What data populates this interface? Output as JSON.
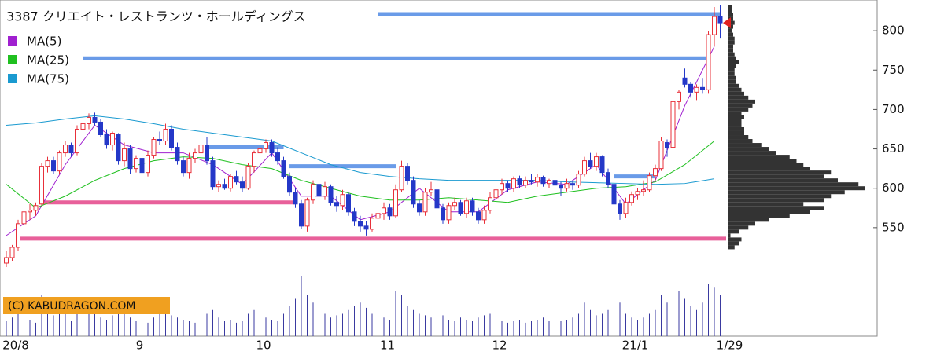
{
  "chart_data": {
    "type": "candlestick",
    "title": "3387 クリエイト・レストランツ・ホールディングス",
    "copyright": "(C) KABUDRAGON.COM",
    "ylim": [
      500,
      839
    ],
    "yticks": [
      550,
      600,
      650,
      700,
      750,
      800
    ],
    "xlim": [
      -1,
      122
    ],
    "xticks": [
      {
        "value": 0,
        "label": "20/8"
      },
      {
        "value": 21,
        "label": "9"
      },
      {
        "value": 42,
        "label": "10"
      },
      {
        "value": 63,
        "label": "11"
      },
      {
        "value": 82,
        "label": "12"
      },
      {
        "value": 105,
        "label": "21/1"
      },
      {
        "value": 121,
        "label": "1/29"
      }
    ],
    "up_color": "#e8303a",
    "down_color": "#2438c8",
    "candles": [
      [
        505,
        520,
        500,
        512
      ],
      [
        512,
        528,
        508,
        525
      ],
      [
        525,
        560,
        520,
        555
      ],
      [
        555,
        575,
        548,
        570
      ],
      [
        570,
        580,
        560,
        572
      ],
      [
        572,
        582,
        565,
        578
      ],
      [
        580,
        632,
        578,
        628
      ],
      [
        628,
        640,
        620,
        635
      ],
      [
        635,
        640,
        618,
        622
      ],
      [
        622,
        648,
        618,
        645
      ],
      [
        645,
        660,
        640,
        655
      ],
      [
        655,
        658,
        640,
        645
      ],
      [
        645,
        680,
        642,
        675
      ],
      [
        675,
        690,
        668,
        682
      ],
      [
        682,
        695,
        675,
        690
      ],
      [
        690,
        696,
        680,
        684
      ],
      [
        684,
        688,
        665,
        668
      ],
      [
        668,
        675,
        650,
        655
      ],
      [
        655,
        672,
        648,
        670
      ],
      [
        668,
        670,
        630,
        635
      ],
      [
        635,
        658,
        628,
        650
      ],
      [
        650,
        655,
        618,
        625
      ],
      [
        625,
        642,
        620,
        638
      ],
      [
        638,
        640,
        615,
        620
      ],
      [
        620,
        648,
        615,
        642
      ],
      [
        642,
        665,
        638,
        662
      ],
      [
        662,
        672,
        655,
        660
      ],
      [
        660,
        682,
        655,
        675
      ],
      [
        675,
        680,
        648,
        652
      ],
      [
        652,
        658,
        630,
        635
      ],
      [
        635,
        640,
        615,
        620
      ],
      [
        620,
        645,
        612,
        638
      ],
      [
        638,
        650,
        632,
        645
      ],
      [
        645,
        660,
        640,
        655
      ],
      [
        655,
        665,
        630,
        635
      ],
      [
        635,
        640,
        598,
        602
      ],
      [
        602,
        610,
        595,
        605
      ],
      [
        605,
        612,
        598,
        600
      ],
      [
        600,
        618,
        596,
        615
      ],
      [
        615,
        622,
        605,
        608
      ],
      [
        608,
        615,
        595,
        600
      ],
      [
        600,
        632,
        598,
        628
      ],
      [
        628,
        648,
        620,
        645
      ],
      [
        645,
        655,
        638,
        650
      ],
      [
        650,
        662,
        645,
        658
      ],
      [
        658,
        662,
        640,
        645
      ],
      [
        645,
        652,
        630,
        635
      ],
      [
        635,
        640,
        612,
        615
      ],
      [
        615,
        620,
        590,
        595
      ],
      [
        595,
        600,
        575,
        580
      ],
      [
        580,
        585,
        548,
        552
      ],
      [
        552,
        588,
        545,
        585
      ],
      [
        585,
        610,
        580,
        605
      ],
      [
        605,
        612,
        585,
        590
      ],
      [
        590,
        608,
        585,
        602
      ],
      [
        602,
        605,
        578,
        582
      ],
      [
        582,
        590,
        570,
        578
      ],
      [
        578,
        598,
        572,
        592
      ],
      [
        592,
        595,
        565,
        570
      ],
      [
        570,
        575,
        552,
        558
      ],
      [
        558,
        565,
        545,
        552
      ],
      [
        552,
        558,
        540,
        548
      ],
      [
        548,
        568,
        545,
        562
      ],
      [
        562,
        575,
        555,
        568
      ],
      [
        568,
        582,
        560,
        575
      ],
      [
        575,
        580,
        560,
        565
      ],
      [
        565,
        605,
        562,
        598
      ],
      [
        598,
        635,
        595,
        628
      ],
      [
        628,
        632,
        605,
        610
      ],
      [
        610,
        615,
        575,
        580
      ],
      [
        580,
        585,
        565,
        570
      ],
      [
        570,
        600,
        565,
        595
      ],
      [
        595,
        608,
        590,
        598
      ],
      [
        598,
        600,
        570,
        575
      ],
      [
        575,
        580,
        555,
        560
      ],
      [
        560,
        582,
        555,
        578
      ],
      [
        578,
        588,
        572,
        582
      ],
      [
        582,
        585,
        565,
        568
      ],
      [
        568,
        588,
        562,
        584
      ],
      [
        584,
        588,
        565,
        570
      ],
      [
        570,
        575,
        555,
        560
      ],
      [
        560,
        578,
        555,
        572
      ],
      [
        572,
        595,
        568,
        588
      ],
      [
        588,
        605,
        582,
        598
      ],
      [
        598,
        612,
        592,
        606
      ],
      [
        606,
        610,
        595,
        600
      ],
      [
        600,
        615,
        595,
        612
      ],
      [
        612,
        616,
        600,
        604
      ],
      [
        604,
        615,
        600,
        610
      ],
      [
        610,
        618,
        605,
        608
      ],
      [
        608,
        618,
        602,
        614
      ],
      [
        614,
        616,
        602,
        606
      ],
      [
        606,
        612,
        600,
        610
      ],
      [
        610,
        612,
        596,
        604
      ],
      [
        604,
        608,
        590,
        600
      ],
      [
        600,
        612,
        596,
        606
      ],
      [
        606,
        610,
        598,
        604
      ],
      [
        604,
        622,
        600,
        618
      ],
      [
        618,
        640,
        615,
        635
      ],
      [
        635,
        645,
        625,
        628
      ],
      [
        628,
        645,
        622,
        640
      ],
      [
        640,
        642,
        615,
        620
      ],
      [
        620,
        625,
        600,
        605
      ],
      [
        605,
        610,
        575,
        580
      ],
      [
        580,
        585,
        560,
        568
      ],
      [
        568,
        588,
        562,
        582
      ],
      [
        582,
        596,
        578,
        592
      ],
      [
        592,
        600,
        585,
        596
      ],
      [
        596,
        610,
        590,
        598
      ],
      [
        598,
        620,
        595,
        616
      ],
      [
        616,
        630,
        610,
        625
      ],
      [
        625,
        665,
        622,
        660
      ],
      [
        658,
        662,
        640,
        652
      ],
      [
        652,
        715,
        648,
        710
      ],
      [
        710,
        725,
        700,
        722
      ],
      [
        740,
        752,
        728,
        732
      ],
      [
        732,
        735,
        715,
        722
      ],
      [
        722,
        732,
        712,
        728
      ],
      [
        728,
        740,
        720,
        725
      ],
      [
        725,
        800,
        720,
        795
      ],
      [
        795,
        830,
        780,
        818
      ],
      [
        818,
        832,
        790,
        810
      ]
    ],
    "volume_lim": [
      0,
      100
    ],
    "volumes": [
      20,
      25,
      30,
      35,
      22,
      18,
      55,
      40,
      28,
      30,
      35,
      20,
      45,
      50,
      38,
      30,
      25,
      22,
      28,
      35,
      30,
      25,
      20,
      22,
      18,
      25,
      30,
      35,
      28,
      25,
      22,
      20,
      18,
      25,
      30,
      35,
      25,
      20,
      22,
      18,
      20,
      30,
      35,
      28,
      25,
      22,
      20,
      30,
      40,
      50,
      80,
      55,
      45,
      35,
      30,
      25,
      28,
      30,
      35,
      40,
      45,
      38,
      30,
      28,
      25,
      22,
      60,
      55,
      40,
      35,
      30,
      28,
      25,
      30,
      28,
      22,
      20,
      25,
      22,
      20,
      25,
      28,
      30,
      22,
      20,
      18,
      20,
      22,
      18,
      20,
      22,
      25,
      20,
      18,
      20,
      22,
      25,
      30,
      45,
      35,
      28,
      30,
      35,
      60,
      45,
      30,
      25,
      22,
      25,
      30,
      35,
      55,
      45,
      95,
      60,
      50,
      40,
      35,
      45,
      70,
      65,
      55
    ],
    "series": [
      {
        "name": "MA(5)",
        "color": "#a020d0",
        "x": [
          0,
          5,
          10,
          15,
          20,
          25,
          30,
          35,
          40,
          45,
          50,
          55,
          60,
          65,
          70,
          75,
          80,
          85,
          90,
          95,
          100,
          105,
          110,
          115,
          120
        ],
        "values": [
          540,
          565,
          630,
          680,
          655,
          645,
          645,
          630,
          605,
          645,
          590,
          590,
          560,
          570,
          600,
          570,
          570,
          598,
          608,
          605,
          630,
          580,
          610,
          705,
          780
        ]
      },
      {
        "name": "MA(25)",
        "color": "#20c020",
        "x": [
          0,
          5,
          10,
          15,
          20,
          25,
          30,
          35,
          40,
          45,
          50,
          55,
          60,
          65,
          70,
          75,
          80,
          85,
          90,
          95,
          100,
          105,
          110,
          115,
          120
        ],
        "values": [
          605,
          575,
          590,
          610,
          625,
          635,
          640,
          638,
          630,
          625,
          610,
          600,
          590,
          585,
          585,
          588,
          585,
          582,
          590,
          595,
          600,
          602,
          608,
          630,
          660
        ]
      },
      {
        "name": "MA(75)",
        "color": "#1a9ad0",
        "x": [
          0,
          5,
          10,
          15,
          20,
          25,
          30,
          35,
          40,
          45,
          50,
          55,
          60,
          65,
          70,
          75,
          80,
          85,
          90,
          95,
          100,
          105,
          110,
          115,
          120
        ],
        "values": [
          680,
          683,
          688,
          692,
          688,
          682,
          675,
          670,
          665,
          660,
          645,
          630,
          620,
          615,
          612,
          610,
          610,
          610,
          610,
          608,
          607,
          606,
          605,
          606,
          612
        ]
      }
    ],
    "levels": [
      {
        "value": 821,
        "from": 63,
        "to": 121,
        "color": "#6a9be8"
      },
      {
        "value": 765,
        "from": 13,
        "to": 119,
        "color": "#6a9be8"
      },
      {
        "value": 652,
        "from": 34,
        "to": 47,
        "color": "#6a9be8"
      },
      {
        "value": 628,
        "from": 48,
        "to": 66,
        "color": "#6a9be8"
      },
      {
        "value": 615,
        "from": 103,
        "to": 110,
        "color": "#6a9be8"
      },
      {
        "value": 582,
        "from": 6,
        "to": 49,
        "color": "#e8609a"
      },
      {
        "value": 536,
        "from": 2,
        "to": 122,
        "color": "#e8609a"
      }
    ],
    "volume_profile": {
      "color": "#333333",
      "xlim": [
        0,
        100
      ],
      "prices": [
        525,
        530,
        535,
        540,
        545,
        550,
        555,
        560,
        565,
        570,
        575,
        580,
        585,
        590,
        595,
        600,
        605,
        610,
        615,
        620,
        625,
        630,
        635,
        640,
        645,
        650,
        655,
        660,
        665,
        670,
        675,
        680,
        685,
        690,
        695,
        700,
        705,
        710,
        715,
        720,
        725,
        730,
        735,
        740,
        745,
        750,
        755,
        760,
        765,
        770,
        775,
        780,
        785,
        790,
        795,
        800,
        805,
        810,
        815,
        820,
        825,
        830
      ],
      "values": [
        5,
        8,
        10,
        2,
        8,
        15,
        20,
        30,
        45,
        60,
        70,
        55,
        70,
        75,
        85,
        100,
        95,
        80,
        70,
        75,
        60,
        55,
        50,
        45,
        35,
        30,
        25,
        18,
        15,
        12,
        12,
        10,
        10,
        12,
        10,
        15,
        18,
        20,
        15,
        12,
        10,
        8,
        6,
        6,
        5,
        5,
        6,
        8,
        6,
        5,
        4,
        4,
        5,
        5,
        4,
        3,
        4,
        5,
        4,
        4,
        3,
        3
      ]
    },
    "last_marker_color": "#e02020"
  }
}
